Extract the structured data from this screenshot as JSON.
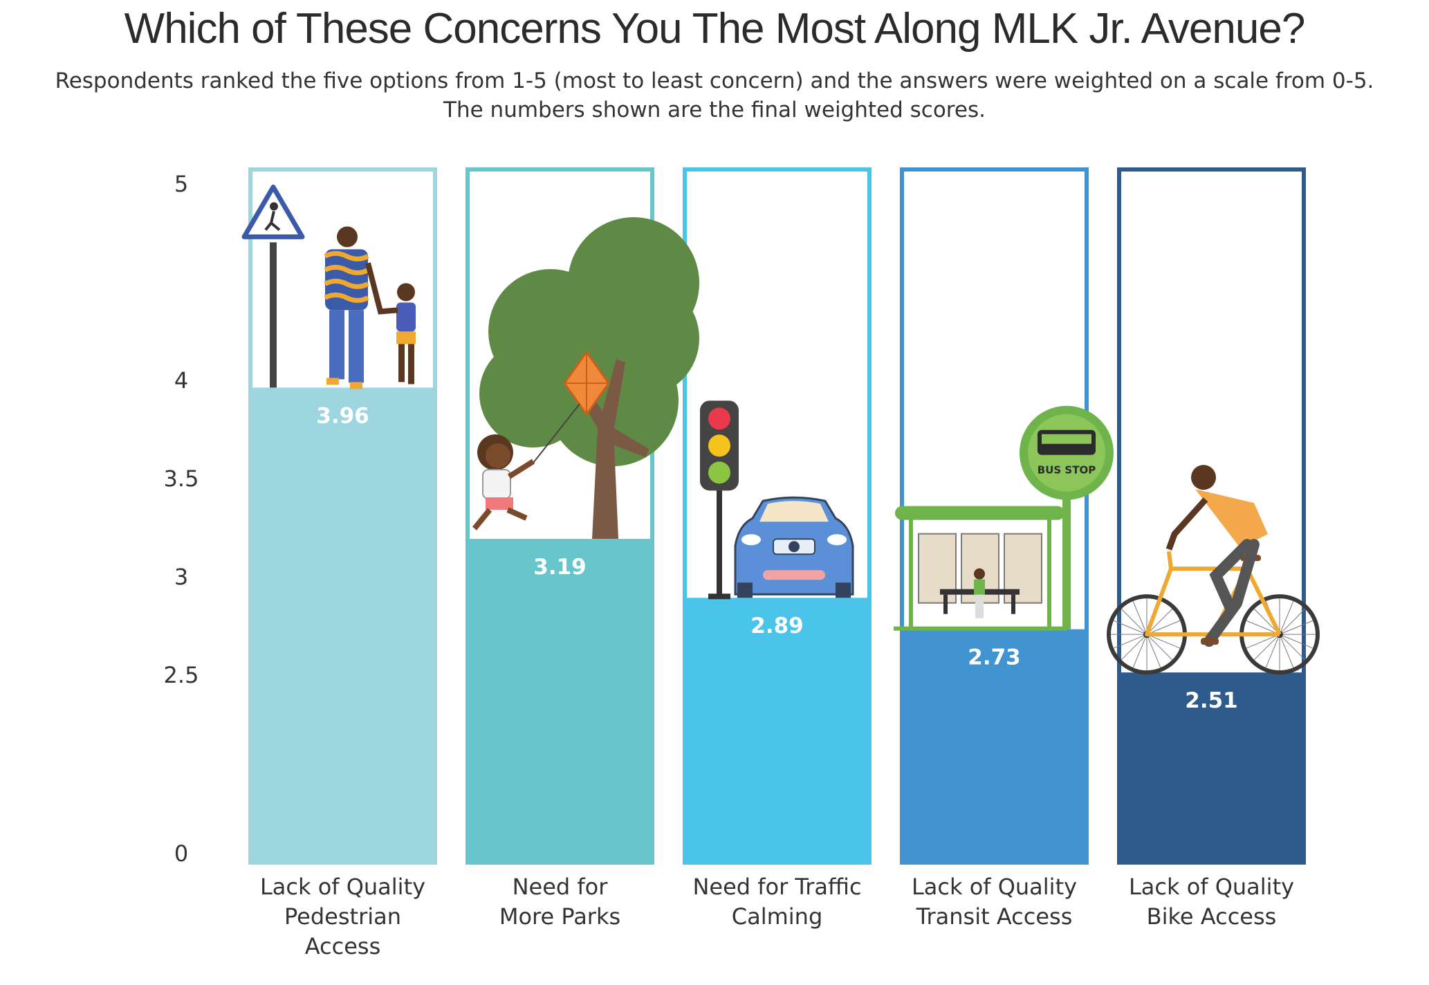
{
  "chart_data": {
    "type": "bar",
    "title": "Which of These Concerns You The Most Along MLK Jr. Avenue?",
    "subtitle": "Respondents ranked the five options from 1-5 (most to least concern) and the answers were weighted on a scale from 0-5. The numbers shown are the final weighted scores.",
    "categories": [
      [
        "Lack of Quality",
        "Pedestrian",
        "Access"
      ],
      [
        "Need for",
        "More Parks"
      ],
      [
        "Need for Traffic",
        "Calming"
      ],
      [
        "Lack of Quality",
        "Transit Access"
      ],
      [
        "Lack of Quality",
        "Bike Access"
      ]
    ],
    "values": [
      3.96,
      3.19,
      2.89,
      2.73,
      2.51
    ],
    "value_labels": [
      "3.96",
      "3.19",
      "2.89",
      "2.73",
      "2.51"
    ],
    "y_ticks": [
      "0",
      "2.5",
      "3",
      "3.5",
      "4",
      "5"
    ],
    "y_tick_values": [
      0,
      2.5,
      3,
      3.5,
      4,
      5
    ],
    "ylim": [
      0,
      5
    ],
    "y_axis_broken": true,
    "xlabel": "",
    "ylabel": "",
    "colors": [
      "#9dd6de",
      "#66c6cc",
      "#4bc4ea",
      "#4194d0",
      "#2e5a8c"
    ],
    "outline_colors": [
      "#9dd6de",
      "#66c6cc",
      "#4bc4ea",
      "#4194d0",
      "#2e5a8c"
    ],
    "illustrations": [
      "pedestrian-sign-and-family-walking",
      "child-flying-kite-under-tree",
      "traffic-light-and-car",
      "bus-stop-shelter",
      "woman-riding-bicycle"
    ],
    "bus_stop_sign_text": "BUS STOP"
  }
}
